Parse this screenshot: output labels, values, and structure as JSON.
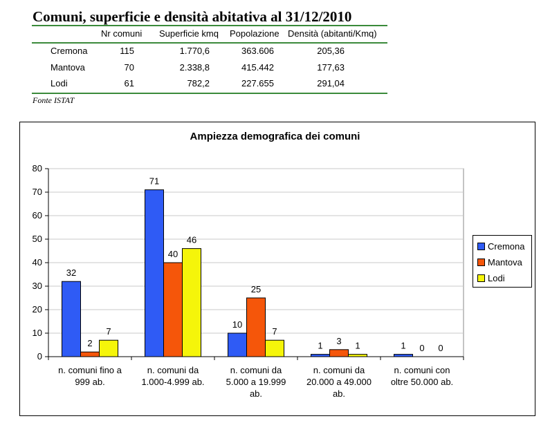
{
  "table": {
    "title": "Comuni, superficie e densità abitativa al 31/12/2010",
    "headers": [
      "Nr comuni",
      "Superficie kmq",
      "Popolazione",
      "Densità (abitanti/Kmq)"
    ],
    "rows": [
      {
        "name": "Cremona",
        "comuni": "115",
        "superficie": "1.770,6",
        "popolazione": "363.606",
        "densita": "205,36"
      },
      {
        "name": "Mantova",
        "comuni": "70",
        "superficie": "2.338,8",
        "popolazione": "415.442",
        "densita": "177,63"
      },
      {
        "name": "Lodi",
        "comuni": "61",
        "superficie": "782,2",
        "popolazione": "227.655",
        "densita": "291,04"
      }
    ],
    "source": "Fonte ISTAT"
  },
  "chart_data": {
    "type": "bar",
    "title": "Ampiezza demografica dei comuni",
    "categories": [
      [
        "n. comuni fino a",
        "999 ab."
      ],
      [
        "n. comuni da",
        "1.000-4.999 ab."
      ],
      [
        "n. comuni da",
        "5.000 a 19.999",
        "ab."
      ],
      [
        "n. comuni da",
        "20.000 a 49.000",
        "ab."
      ],
      [
        "n. comuni con",
        "oltre 50.000 ab."
      ]
    ],
    "series": [
      {
        "name": "Cremona",
        "color": "#2f5bf5",
        "values": [
          32,
          71,
          10,
          1,
          1
        ]
      },
      {
        "name": "Mantova",
        "color": "#f5560a",
        "values": [
          2,
          40,
          25,
          3,
          0
        ]
      },
      {
        "name": "Lodi",
        "color": "#f5f50a",
        "values": [
          7,
          46,
          7,
          1,
          0
        ]
      }
    ],
    "yticks": [
      0,
      10,
      20,
      30,
      40,
      50,
      60,
      70,
      80
    ],
    "ylim": [
      0,
      80
    ],
    "grid": true,
    "legend": "right"
  }
}
